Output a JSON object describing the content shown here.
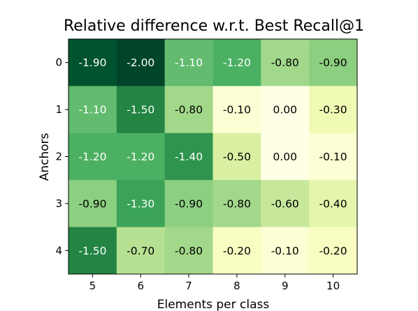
{
  "chart_data": {
    "type": "heatmap",
    "title": "Relative difference w.r.t. Best Recall@1",
    "xlabel": "Elements per class",
    "ylabel": "Anchors",
    "x_categories": [
      "5",
      "6",
      "7",
      "8",
      "9",
      "10"
    ],
    "y_categories": [
      "0",
      "1",
      "2",
      "3",
      "4"
    ],
    "values": [
      [
        -1.9,
        -2.0,
        -1.1,
        -1.2,
        -0.8,
        -0.9
      ],
      [
        -1.1,
        -1.5,
        -0.8,
        -0.1,
        0.0,
        -0.3
      ],
      [
        -1.2,
        -1.2,
        -1.4,
        -0.5,
        0.0,
        -0.1
      ],
      [
        -0.9,
        -1.3,
        -0.9,
        -0.8,
        -0.6,
        -0.4
      ],
      [
        -1.5,
        -0.7,
        -0.8,
        -0.2,
        -0.1,
        -0.2
      ]
    ],
    "value_labels": [
      [
        "-1.90",
        "-2.00",
        "-1.10",
        "-1.20",
        "-0.80",
        "-0.90"
      ],
      [
        "-1.10",
        "-1.50",
        "-0.80",
        "-0.10",
        "0.00",
        "-0.30"
      ],
      [
        "-1.20",
        "-1.20",
        "-1.40",
        "-0.50",
        "0.00",
        "-0.10"
      ],
      [
        "-0.90",
        "-1.30",
        "-0.90",
        "-0.80",
        "-0.60",
        "-0.40"
      ],
      [
        "-1.50",
        "-0.70",
        "-0.80",
        "-0.20",
        "-0.10",
        "-0.20"
      ]
    ],
    "value_range": [
      -2.0,
      0.0
    ],
    "colormap": "YlGn_reversed",
    "colormap_colors": [
      "#004529",
      "#006837",
      "#238443",
      "#41ab5d",
      "#78c679",
      "#addd8e",
      "#d9f0a3",
      "#f7fcb9",
      "#ffffe5"
    ],
    "grid": false,
    "legend": "none"
  }
}
